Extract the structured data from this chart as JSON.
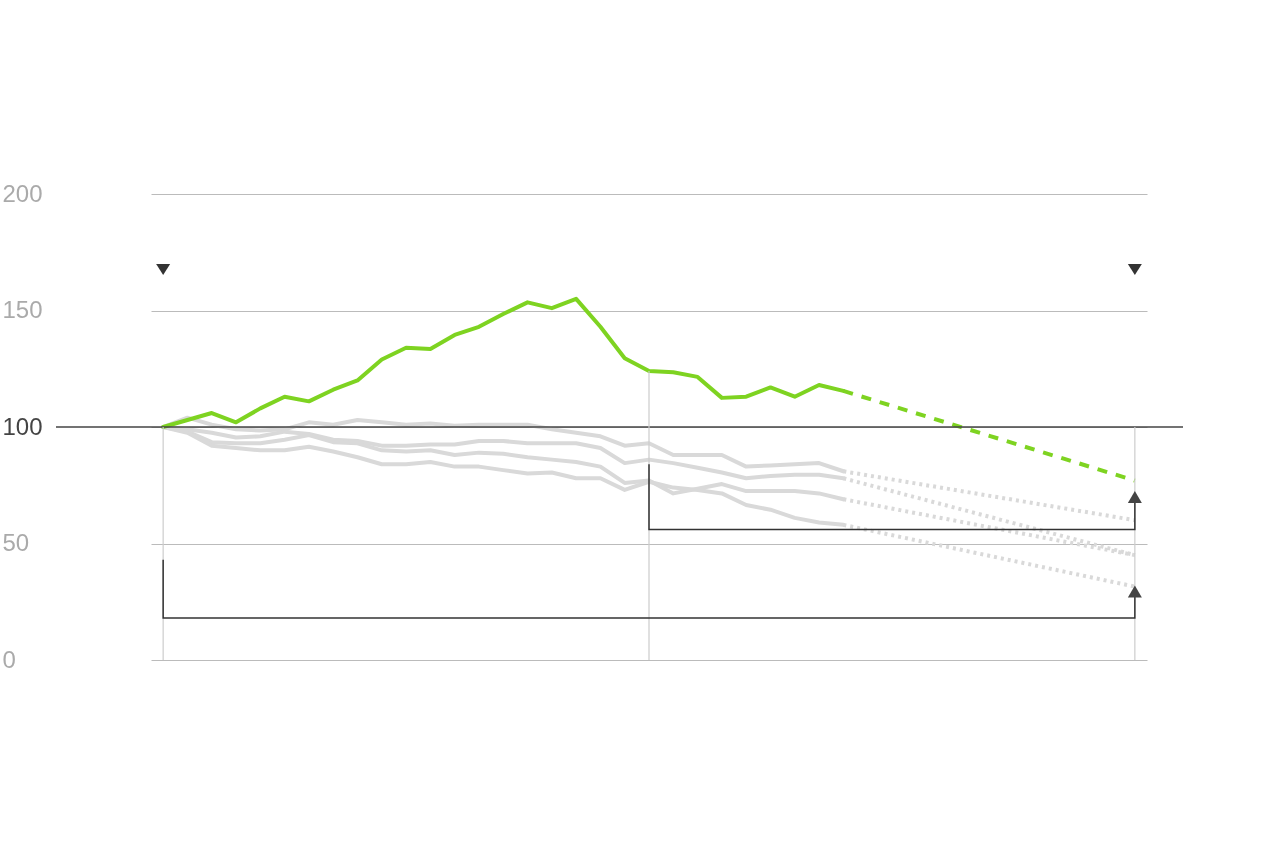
{
  "chart_data": {
    "type": "line",
    "categories": [
      null,
      null,
      null,
      null,
      null,
      null,
      null,
      null,
      null,
      null,
      null,
      null,
      null,
      null,
      null,
      null,
      null,
      null,
      null,
      null,
      null,
      null,
      null,
      null,
      null,
      null,
      null,
      null,
      null,
      null,
      null,
      null,
      null,
      null,
      null,
      null,
      null,
      null,
      null,
      null,
      null
    ],
    "ylim": [
      0,
      200
    ],
    "yticks": [
      0,
      50,
      100,
      150,
      200
    ],
    "grid": "y",
    "tick_labels": "y",
    "marker": "none",
    "ref_lines": [
      {
        "axis": "y",
        "value": 100,
        "color": "#444444"
      }
    ],
    "series": [
      {
        "color": "#d9d9d9",
        "line_style": "solid",
        "values": [
          100,
          104,
          101,
          99,
          98.5,
          99,
          102,
          101,
          103,
          102,
          101,
          101.5,
          100.5,
          101,
          101,
          101,
          99,
          97.5,
          96,
          92,
          93,
          88,
          88,
          88,
          83,
          83.5,
          84,
          84.5,
          81,
          null,
          null,
          null,
          null,
          null,
          null,
          null,
          null,
          null,
          null,
          null,
          null
        ]
      },
      {
        "color": "#d9d9d9",
        "line_style": "solid",
        "values": [
          100,
          99,
          97.5,
          95.5,
          96,
          98,
          97,
          94.5,
          94,
          92,
          92,
          92.5,
          92.5,
          94,
          94,
          93,
          93,
          93,
          91,
          84.5,
          86,
          84.5,
          82.5,
          80.5,
          78,
          79,
          79.5,
          79.5,
          78,
          null,
          null,
          null,
          null,
          null,
          null,
          null,
          null,
          null,
          null,
          null,
          null
        ]
      },
      {
        "color": "#d9d9d9",
        "line_style": "solid",
        "values": [
          100,
          98,
          93.5,
          93,
          93,
          94.5,
          96.5,
          93.5,
          93,
          90,
          89.5,
          90,
          88,
          89,
          88.5,
          87,
          86,
          85,
          83,
          76,
          77,
          71.5,
          73.5,
          75.5,
          72.5,
          72.5,
          72.5,
          71.5,
          69,
          null,
          null,
          null,
          null,
          null,
          null,
          null,
          null,
          null,
          null,
          null,
          null
        ]
      },
      {
        "color": "#d9d9d9",
        "line_style": "solid",
        "values": [
          100,
          97.5,
          92,
          91,
          90,
          90,
          91.5,
          89.5,
          87,
          84,
          84,
          85,
          83,
          83,
          81.5,
          80,
          80.5,
          78,
          78,
          73,
          76.5,
          74,
          73,
          71.5,
          66.5,
          64.5,
          61,
          59,
          58,
          null,
          null,
          null,
          null,
          null,
          null,
          null,
          null,
          null,
          null,
          null,
          null
        ]
      },
      {
        "color": "#d9d9d9",
        "line_style": "dotted",
        "values": [
          null,
          null,
          null,
          null,
          null,
          null,
          null,
          null,
          null,
          null,
          null,
          null,
          null,
          null,
          null,
          null,
          null,
          null,
          null,
          null,
          null,
          null,
          null,
          null,
          null,
          null,
          null,
          null,
          81,
          null,
          null,
          null,
          null,
          null,
          null,
          null,
          null,
          null,
          null,
          null,
          60
        ]
      },
      {
        "color": "#d9d9d9",
        "line_style": "dotted",
        "values": [
          null,
          null,
          null,
          null,
          null,
          null,
          null,
          null,
          null,
          null,
          null,
          null,
          null,
          null,
          null,
          null,
          null,
          null,
          null,
          null,
          null,
          null,
          null,
          null,
          null,
          null,
          null,
          null,
          78,
          null,
          null,
          null,
          null,
          null,
          null,
          null,
          null,
          null,
          null,
          null,
          45
        ]
      },
      {
        "color": "#d9d9d9",
        "line_style": "dotted",
        "values": [
          null,
          null,
          null,
          null,
          null,
          null,
          null,
          null,
          null,
          null,
          null,
          null,
          null,
          null,
          null,
          null,
          null,
          null,
          null,
          null,
          null,
          null,
          null,
          null,
          null,
          null,
          null,
          null,
          69,
          null,
          null,
          null,
          null,
          null,
          null,
          null,
          null,
          null,
          null,
          null,
          45
        ]
      },
      {
        "color": "#d9d9d9",
        "line_style": "dotted",
        "values": [
          null,
          null,
          null,
          null,
          null,
          null,
          null,
          null,
          null,
          null,
          null,
          null,
          null,
          null,
          null,
          null,
          null,
          null,
          null,
          null,
          null,
          null,
          null,
          null,
          null,
          null,
          null,
          null,
          58,
          null,
          null,
          null,
          null,
          null,
          null,
          null,
          null,
          null,
          null,
          null,
          31.5
        ]
      },
      {
        "color": "#7ed321",
        "line_style": "solid",
        "values": [
          100,
          103,
          106,
          102,
          108,
          113,
          111,
          116,
          120,
          129,
          134,
          133.5,
          139.5,
          143,
          148.5,
          153.5,
          151,
          155,
          143,
          129.5,
          124,
          123.5,
          121.5,
          112.5,
          113,
          117,
          113,
          118,
          115.5,
          null,
          null,
          null,
          null,
          null,
          null,
          null,
          null,
          null,
          null,
          null,
          null
        ]
      },
      {
        "color": "#7ed321",
        "line_style": "dashed",
        "values": [
          null,
          null,
          null,
          null,
          null,
          null,
          null,
          null,
          null,
          null,
          null,
          null,
          null,
          null,
          null,
          null,
          null,
          null,
          null,
          null,
          null,
          null,
          null,
          null,
          null,
          null,
          null,
          null,
          115.5,
          null,
          null,
          null,
          null,
          null,
          null,
          null,
          null,
          null,
          null,
          null,
          77
        ]
      }
    ]
  }
}
